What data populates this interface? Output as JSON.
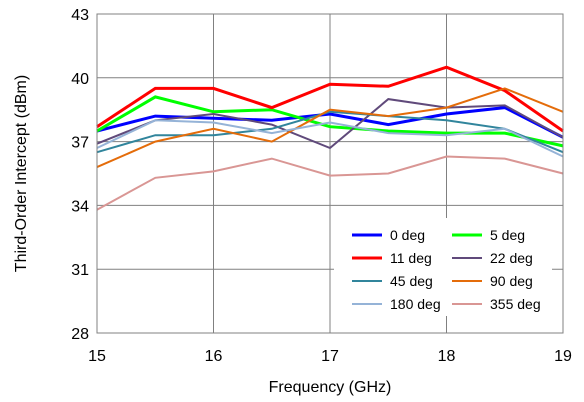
{
  "chart_data": {
    "type": "line",
    "xlabel": "Frequency (GHz)",
    "ylabel": "Third-Order Intercept (dBm)",
    "xlim": [
      15,
      19
    ],
    "ylim": [
      28,
      43
    ],
    "xticks": [
      "15",
      "16",
      "17",
      "18",
      "19"
    ],
    "yticks": [
      "28",
      "31",
      "34",
      "37",
      "40",
      "43"
    ],
    "grid": true,
    "legend_position": "lower-right",
    "x": [
      15,
      15.5,
      16,
      16.5,
      17,
      17.5,
      18,
      18.5,
      19
    ],
    "series": [
      {
        "name": "0 deg",
        "color": "#0000ff",
        "width": 3,
        "values": [
          37.5,
          38.2,
          38.1,
          38.0,
          38.3,
          37.8,
          38.3,
          38.6,
          37.2
        ]
      },
      {
        "name": "5 deg",
        "color": "#00ff00",
        "width": 3,
        "values": [
          37.5,
          39.1,
          38.4,
          38.5,
          37.7,
          37.5,
          37.4,
          37.4,
          36.8
        ]
      },
      {
        "name": "11 deg",
        "color": "#ff0000",
        "width": 3,
        "values": [
          37.7,
          39.5,
          39.5,
          38.6,
          39.7,
          39.6,
          40.5,
          39.4,
          37.5
        ]
      },
      {
        "name": "22 deg",
        "color": "#604a7b",
        "width": 2,
        "values": [
          36.9,
          38.0,
          38.3,
          37.8,
          36.7,
          39.0,
          38.6,
          38.7,
          37.2
        ]
      },
      {
        "name": "45 deg",
        "color": "#31859c",
        "width": 2,
        "values": [
          36.5,
          37.3,
          37.3,
          37.6,
          38.4,
          38.2,
          38.0,
          37.6,
          36.5
        ]
      },
      {
        "name": "90 deg",
        "color": "#e46c0a",
        "width": 2,
        "values": [
          35.8,
          37.0,
          37.6,
          37.0,
          38.5,
          38.2,
          38.6,
          39.5,
          38.4
        ]
      },
      {
        "name": "180 deg",
        "color": "#95b3d7",
        "width": 2,
        "values": [
          36.7,
          38.0,
          37.9,
          37.4,
          37.9,
          37.4,
          37.3,
          37.6,
          36.3
        ]
      },
      {
        "name": "355 deg",
        "color": "#d99694",
        "width": 2,
        "values": [
          33.8,
          35.3,
          35.6,
          36.2,
          35.4,
          35.5,
          36.3,
          36.2,
          35.5
        ]
      }
    ]
  }
}
